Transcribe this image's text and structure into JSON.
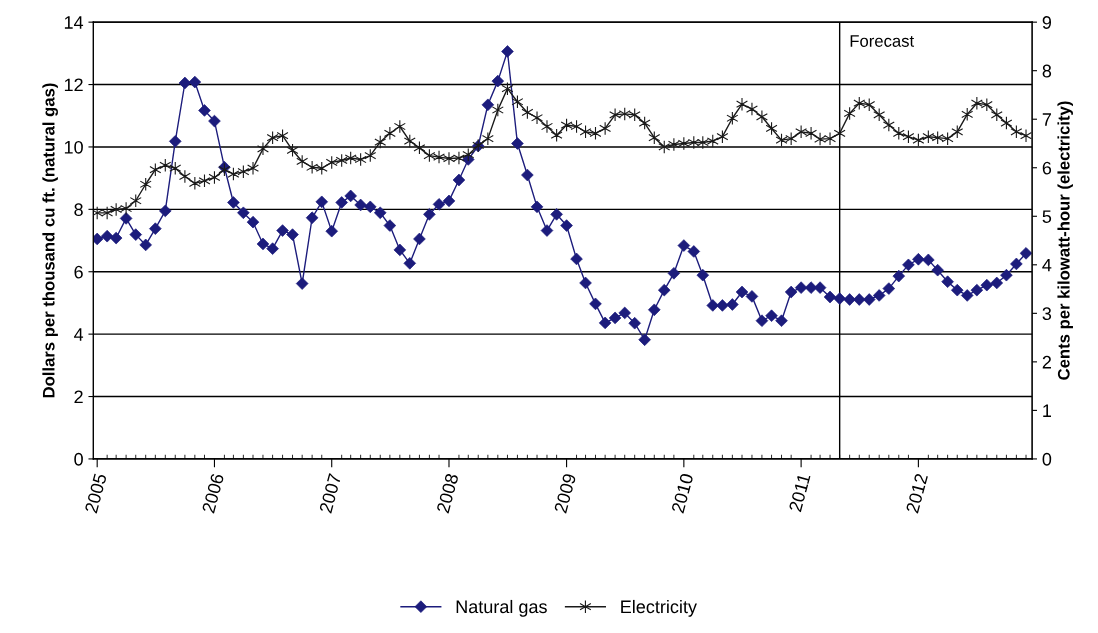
{
  "chart_data": {
    "type": "line",
    "ylabel": "Dollars per thousand cu ft. (natural gas)",
    "y2label": "Cents per kilowatt-hour (electricity)",
    "x": [
      "2005-01",
      "2005-02",
      "2005-03",
      "2005-04",
      "2005-05",
      "2005-06",
      "2005-07",
      "2005-08",
      "2005-09",
      "2005-10",
      "2005-11",
      "2005-12",
      "2006-01",
      "2006-02",
      "2006-03",
      "2006-04",
      "2006-05",
      "2006-06",
      "2006-07",
      "2006-08",
      "2006-09",
      "2006-10",
      "2006-11",
      "2006-12",
      "2007-01",
      "2007-02",
      "2007-03",
      "2007-04",
      "2007-05",
      "2007-06",
      "2007-07",
      "2007-08",
      "2007-09",
      "2007-10",
      "2007-11",
      "2007-12",
      "2008-01",
      "2008-02",
      "2008-03",
      "2008-04",
      "2008-05",
      "2008-06",
      "2008-07",
      "2008-08",
      "2008-09",
      "2008-10",
      "2008-11",
      "2008-12",
      "2009-01",
      "2009-02",
      "2009-03",
      "2009-04",
      "2009-05",
      "2009-06",
      "2009-07",
      "2009-08",
      "2009-09",
      "2009-10",
      "2009-11",
      "2009-12",
      "2010-01",
      "2010-02",
      "2010-03",
      "2010-04",
      "2010-05",
      "2010-06",
      "2010-07",
      "2010-08",
      "2010-09",
      "2010-10",
      "2010-11",
      "2010-12",
      "2011-01",
      "2011-02",
      "2011-03",
      "2011-04",
      "2011-05",
      "2011-06",
      "2011-07",
      "2011-08",
      "2011-09",
      "2011-10",
      "2011-11",
      "2011-12",
      "2012-01",
      "2012-02",
      "2012-03",
      "2012-04",
      "2012-05",
      "2012-06",
      "2012-07",
      "2012-08",
      "2012-09",
      "2012-10",
      "2012-11",
      "2012-12"
    ],
    "xlim": [
      "2004-12-20",
      "2012-12-20"
    ],
    "xticks": [
      {
        "value": "2005-01-01",
        "label": "2005"
      },
      {
        "value": "2006-01-01",
        "label": "2006"
      },
      {
        "value": "2007-01-01",
        "label": "2007"
      },
      {
        "value": "2008-01-01",
        "label": "2008"
      },
      {
        "value": "2009-01-01",
        "label": "2009"
      },
      {
        "value": "2010-01-01",
        "label": "2010"
      },
      {
        "value": "2011-01-01",
        "label": "2011"
      },
      {
        "value": "2012-01-01",
        "label": "2012"
      }
    ],
    "ylim": [
      0,
      14
    ],
    "yticks": [
      0,
      2,
      4,
      6,
      8,
      10,
      12,
      14
    ],
    "y2lim": [
      0,
      9
    ],
    "y2ticks": [
      0,
      1,
      2,
      3,
      4,
      5,
      6,
      7,
      8,
      9
    ],
    "grid": "y",
    "legend": "bottom",
    "ref_lines": [
      {
        "axis": "x",
        "value": "2011-05",
        "label": "Forecast",
        "color": "#000000"
      }
    ],
    "series": [
      {
        "name": "Natural gas",
        "color": "#1c1c7c",
        "marker": "diamond",
        "values": [
          7.05,
          7.14,
          7.08,
          7.71,
          7.19,
          6.86,
          7.38,
          7.95,
          10.18,
          12.05,
          12.08,
          11.17,
          10.83,
          9.35,
          8.22,
          7.89,
          7.59,
          6.89,
          6.74,
          7.32,
          7.19,
          5.62,
          7.73,
          8.24,
          7.3,
          8.22,
          8.43,
          8.14,
          8.08,
          7.89,
          7.48,
          6.7,
          6.27,
          7.05,
          7.84,
          8.16,
          8.27,
          8.94,
          9.6,
          10.03,
          11.35,
          12.11,
          13.06,
          10.11,
          9.1,
          8.08,
          7.32,
          7.84,
          7.48,
          6.41,
          5.64,
          4.97,
          4.36,
          4.52,
          4.68,
          4.35,
          3.82,
          4.78,
          5.41,
          5.95,
          6.84,
          6.65,
          5.89,
          4.92,
          4.92,
          4.95,
          5.35,
          5.21,
          4.43,
          4.59,
          4.43,
          5.35,
          5.49,
          5.49,
          5.49,
          5.19,
          5.14,
          5.11,
          5.11,
          5.11,
          5.24,
          5.46,
          5.86,
          6.22,
          6.4,
          6.38,
          6.05,
          5.68,
          5.41,
          5.24,
          5.41,
          5.57,
          5.64,
          5.89,
          6.25,
          6.59
        ]
      },
      {
        "name": "Electricity",
        "color": "#1a1a1a",
        "marker": "cross",
        "axis": "y2",
        "values": [
          5.07,
          5.07,
          5.14,
          5.16,
          5.32,
          5.66,
          5.96,
          6.05,
          5.99,
          5.82,
          5.68,
          5.73,
          5.8,
          5.96,
          5.87,
          5.92,
          5.99,
          6.39,
          6.62,
          6.66,
          6.36,
          6.13,
          6.01,
          5.99,
          6.11,
          6.15,
          6.2,
          6.17,
          6.25,
          6.53,
          6.71,
          6.85,
          6.55,
          6.41,
          6.25,
          6.22,
          6.19,
          6.2,
          6.27,
          6.46,
          6.6,
          7.19,
          7.63,
          7.36,
          7.14,
          7.03,
          6.85,
          6.67,
          6.88,
          6.85,
          6.74,
          6.71,
          6.81,
          7.09,
          7.11,
          7.09,
          6.92,
          6.62,
          6.43,
          6.48,
          6.5,
          6.52,
          6.52,
          6.55,
          6.64,
          7.02,
          7.31,
          7.21,
          7.05,
          6.81,
          6.57,
          6.6,
          6.74,
          6.71,
          6.59,
          6.6,
          6.71,
          7.12,
          7.33,
          7.3,
          7.09,
          6.88,
          6.71,
          6.64,
          6.57,
          6.64,
          6.62,
          6.6,
          6.74,
          7.1,
          7.33,
          7.3,
          7.09,
          6.92,
          6.74,
          6.66
        ]
      }
    ]
  }
}
